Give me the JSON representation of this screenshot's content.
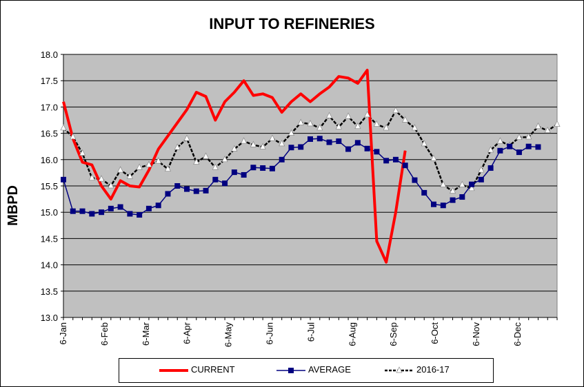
{
  "chart_data": {
    "type": "line",
    "title": "INPUT TO REFINERIES",
    "ylabel": "MBPD",
    "xlabel": "",
    "ylim": [
      13.0,
      18.0
    ],
    "y_ticks": [
      "13.0",
      "13.5",
      "14.0",
      "14.5",
      "15.0",
      "15.5",
      "16.0",
      "16.5",
      "17.0",
      "17.5",
      "18.0"
    ],
    "x_ticks": [
      "6-Jan",
      "6-Feb",
      "6-Mar",
      "6-Apr",
      "6-May",
      "6-Jun",
      "6-Jul",
      "6-Aug",
      "6-Sep",
      "6-Oct",
      "6-Nov",
      "6-Dec"
    ],
    "weeks_total": 52,
    "grid": true,
    "legend_position": "bottom",
    "series": [
      {
        "name": "CURRENT",
        "color": "#ff0000",
        "marker": "none",
        "values": [
          17.1,
          16.4,
          15.95,
          15.9,
          15.5,
          15.25,
          15.6,
          15.5,
          15.48,
          15.8,
          16.2,
          16.45,
          16.7,
          16.95,
          17.28,
          17.2,
          16.75,
          17.1,
          17.28,
          17.5,
          17.22,
          17.25,
          17.18,
          16.9,
          17.1,
          17.25,
          17.1,
          17.25,
          17.38,
          17.58,
          17.55,
          17.45,
          17.7,
          14.45,
          14.05,
          15.0,
          16.17
        ]
      },
      {
        "name": "AVERAGE",
        "color": "#000080",
        "marker": "square",
        "values": [
          15.62,
          15.02,
          15.02,
          14.97,
          15.0,
          15.07,
          15.1,
          14.97,
          14.95,
          15.07,
          15.13,
          15.35,
          15.5,
          15.44,
          15.4,
          15.41,
          15.62,
          15.55,
          15.76,
          15.71,
          15.85,
          15.84,
          15.83,
          16.0,
          16.23,
          16.24,
          16.39,
          16.4,
          16.33,
          16.35,
          16.2,
          16.32,
          16.21,
          16.15,
          15.98,
          16.0,
          15.89,
          15.61,
          15.37,
          15.15,
          15.13,
          15.23,
          15.29,
          15.53,
          15.62,
          15.84,
          16.17,
          16.25,
          16.14,
          16.25,
          16.24
        ]
      },
      {
        "name": "2016-17",
        "color": "#000000",
        "marker": "triangle",
        "values": [
          16.6,
          16.43,
          16.12,
          15.65,
          15.63,
          15.5,
          15.8,
          15.68,
          15.85,
          15.9,
          15.97,
          15.82,
          16.23,
          16.4,
          15.95,
          16.06,
          15.85,
          16.0,
          16.2,
          16.35,
          16.28,
          16.24,
          16.4,
          16.3,
          16.5,
          16.7,
          16.68,
          16.6,
          16.83,
          16.62,
          16.82,
          16.63,
          16.85,
          16.67,
          16.6,
          16.93,
          16.75,
          16.6,
          16.3,
          16.02,
          15.52,
          15.4,
          15.52,
          15.45,
          15.8,
          16.18,
          16.35,
          16.27,
          16.42,
          16.43,
          16.63,
          16.55,
          16.67
        ]
      }
    ]
  },
  "colors": {
    "plot_background": "#c0c0c0",
    "gridline": "#000000"
  }
}
